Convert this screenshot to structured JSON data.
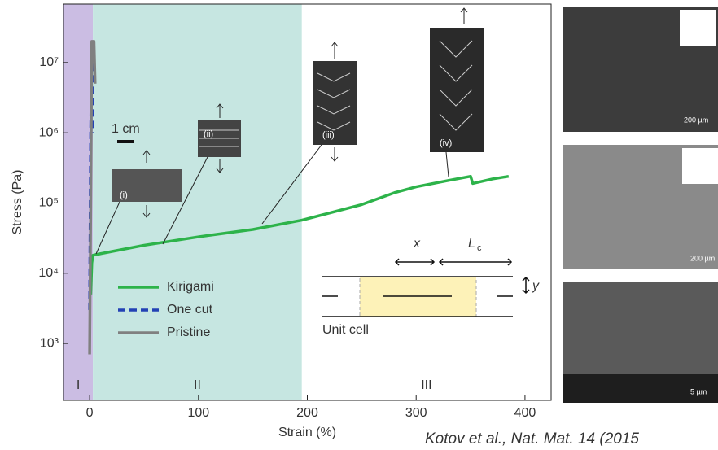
{
  "chart_data": {
    "type": "line",
    "x_label": "Strain (%)",
    "y_label": "Stress (Pa)",
    "ylog": true,
    "xlim": [
      -24,
      424
    ],
    "ylim": [
      155,
      68000000
    ],
    "xticks": [
      0,
      100,
      200,
      300,
      400
    ],
    "yticks": [
      {
        "value": 1000,
        "label": "10³"
      },
      {
        "value": 10000,
        "label": "10⁴"
      },
      {
        "value": 100000,
        "label": "10⁵"
      },
      {
        "value": 1000000,
        "label": "10⁶"
      },
      {
        "value": 10000000,
        "label": "10⁷"
      }
    ],
    "regions": [
      {
        "label": "I",
        "xlim": [
          -24,
          3
        ],
        "color": "#cbbde3"
      },
      {
        "label": "II",
        "xlim": [
          3,
          195
        ],
        "color": "#c6e6e1"
      },
      {
        "label": "III",
        "xlim": [
          195,
          424
        ],
        "color": "#ffffff"
      }
    ],
    "series": [
      {
        "name": "Kirigami",
        "color": "#2db34a",
        "dash": false,
        "x": [
          1,
          2,
          3,
          10,
          50,
          100,
          150,
          195,
          250,
          280,
          300,
          330,
          350,
          352,
          370,
          385
        ],
        "values": [
          5000,
          14000,
          18000,
          19000,
          25000,
          33000,
          42000,
          57000,
          95000,
          140000,
          170000,
          210000,
          240000,
          190000,
          220000,
          240000
        ]
      },
      {
        "name": "One cut",
        "color": "#2342b5",
        "dash": true,
        "x": [
          0,
          1,
          2,
          3,
          3
        ],
        "values": [
          3000,
          1000000,
          15000000,
          10000000,
          1000000
        ]
      },
      {
        "name": "Pristine",
        "color": "#808080",
        "dash": false,
        "x": [
          0,
          1,
          2,
          4,
          5
        ],
        "values": [
          700,
          100000,
          20000000,
          20000000,
          5000000
        ]
      }
    ],
    "annotations": {
      "scale": "1 cm",
      "insets": [
        "(i)",
        "(ii)",
        "(iii)",
        "(iv)"
      ],
      "unit_cell": "Unit cell",
      "x": "x",
      "lc": "L",
      "lc_sub": "c",
      "y": "y"
    },
    "sem_scales": [
      "200 µm",
      "200 µm",
      "5 µm"
    ],
    "citation": "Kotov et al., Nat. Mat. 14 (2015"
  }
}
